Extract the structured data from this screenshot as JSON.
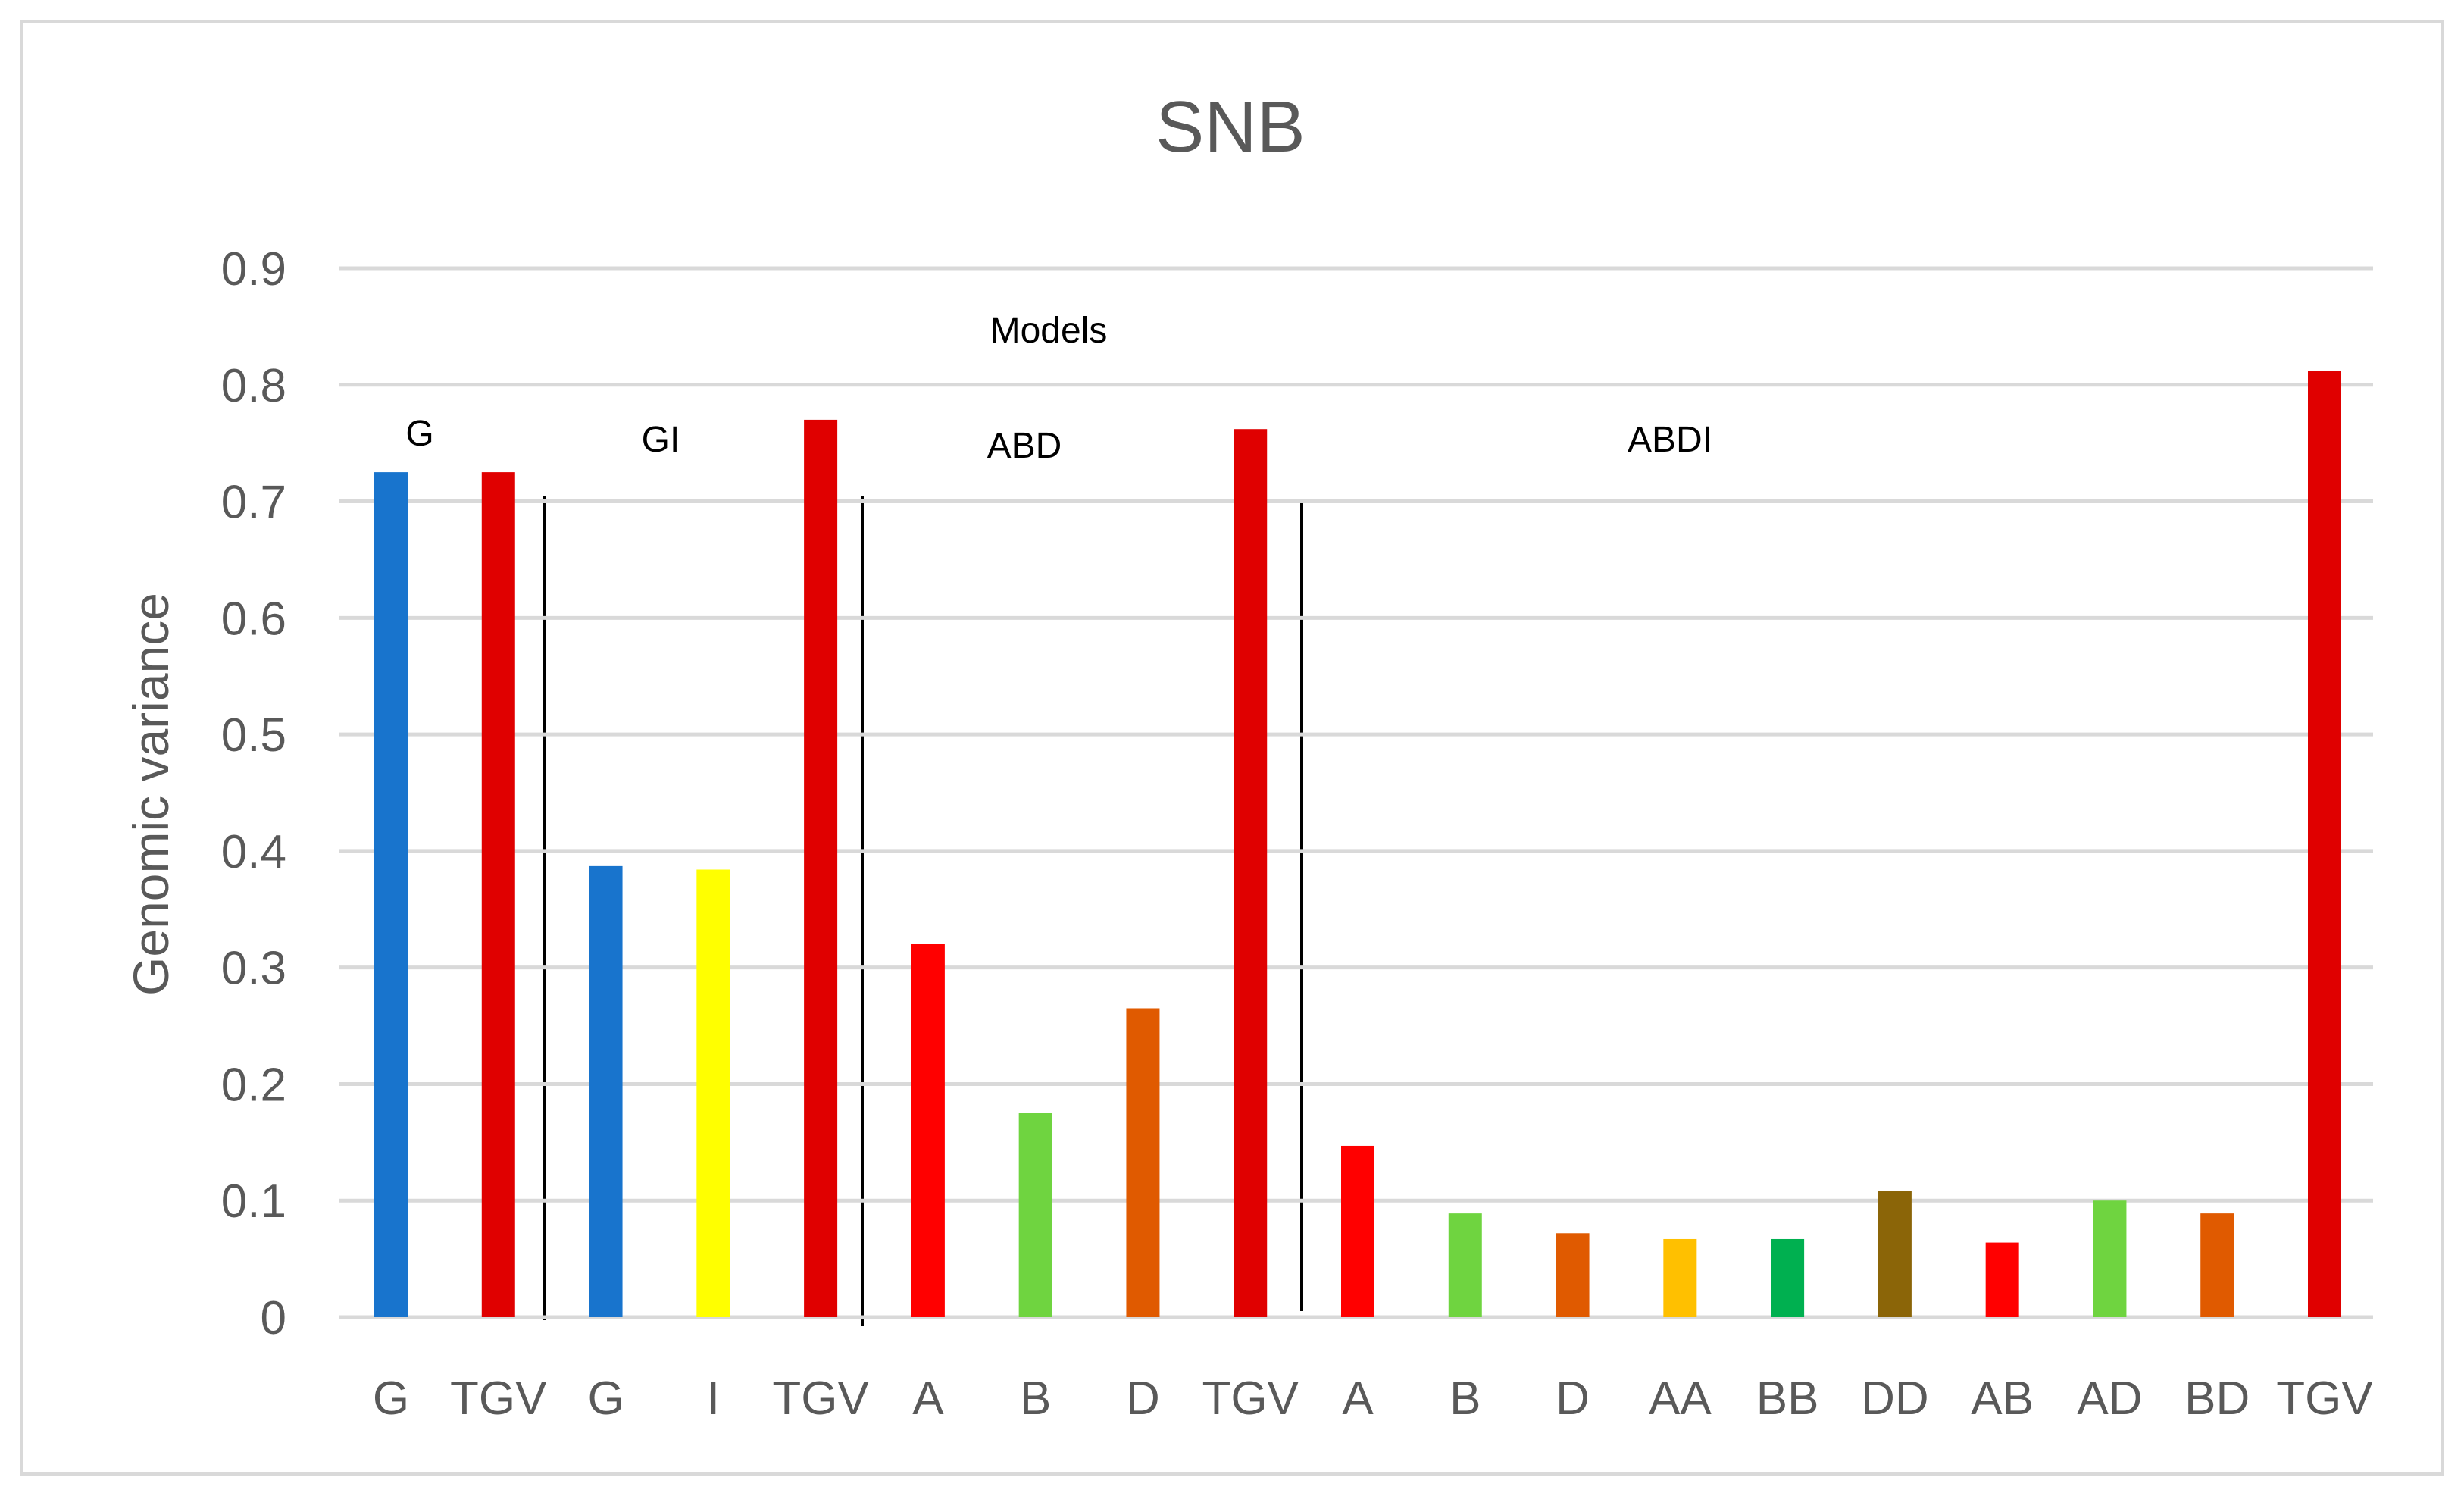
{
  "chart_data": {
    "type": "bar",
    "title": "SNB",
    "ylabel": "Genomic variance",
    "xlabel": "",
    "ylim": [
      0,
      0.9
    ],
    "yticks": [
      "0",
      "0.1",
      "0.2",
      "0.3",
      "0.4",
      "0.5",
      "0.6",
      "0.7",
      "0.8",
      "0.9"
    ],
    "grid": true,
    "legend": "none",
    "categories": [
      "G",
      "TGV",
      "G",
      "I",
      "TGV",
      "A",
      "B",
      "D",
      "TGV",
      "A",
      "B",
      "D",
      "AA",
      "BB",
      "DD",
      "AB",
      "AD",
      "BD",
      "TGV"
    ],
    "values": [
      0.725,
      0.725,
      0.387,
      0.384,
      0.77,
      0.32,
      0.175,
      0.265,
      0.762,
      0.147,
      0.089,
      0.072,
      0.067,
      0.067,
      0.108,
      0.064,
      0.1,
      0.089,
      0.812
    ],
    "colors": [
      "#1874CD",
      "#E00000",
      "#1874CD",
      "#FFFF00",
      "#E00000",
      "#FF0000",
      "#6FD440",
      "#E05A00",
      "#E00000",
      "#FF0000",
      "#6FD440",
      "#E05A00",
      "#FFC000",
      "#00B050",
      "#8B6508",
      "#FF0000",
      "#6FD440",
      "#E05A00",
      "#E00000"
    ],
    "annotations": {
      "header": "Models",
      "groups": [
        "G",
        "GI",
        "ABD",
        "ABDI"
      ]
    }
  }
}
